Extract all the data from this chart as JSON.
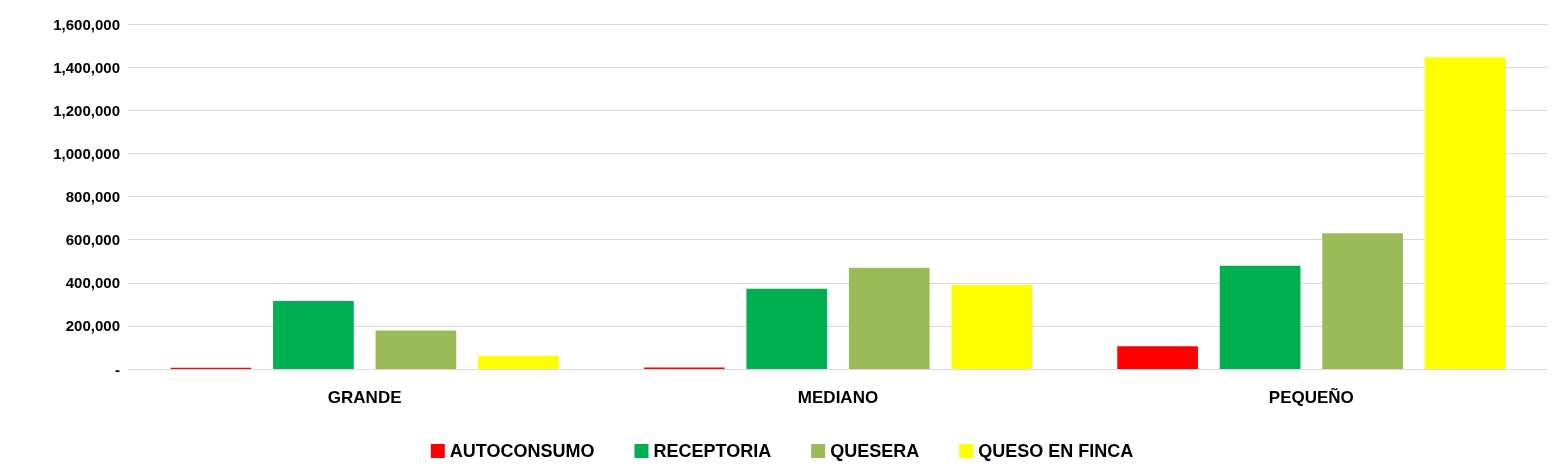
{
  "chart_data": {
    "type": "bar",
    "categories": [
      "GRANDE",
      "MEDIANO",
      "PEQUEÑO"
    ],
    "series": [
      {
        "name": "AUTOCONSUMO",
        "color": "#ff0000",
        "values": [
          6000,
          7000,
          106000
        ]
      },
      {
        "name": "RECEPTORIA",
        "color": "#00b050",
        "values": [
          315000,
          372000,
          479000
        ]
      },
      {
        "name": "QUESERA",
        "color": "#9bbb59",
        "values": [
          178000,
          470000,
          630000
        ]
      },
      {
        "name": "QUESO EN FINCA",
        "color": "#ffff00",
        "values": [
          62000,
          390000,
          1446000
        ]
      }
    ],
    "ylim": [
      0,
      1600000
    ],
    "yticks": [
      {
        "value": 0,
        "label": "-"
      },
      {
        "value": 200000,
        "label": "200,000"
      },
      {
        "value": 400000,
        "label": "400,000"
      },
      {
        "value": 600000,
        "label": "600,000"
      },
      {
        "value": 800000,
        "label": "800,000"
      },
      {
        "value": 1000000,
        "label": "1,000,000"
      },
      {
        "value": 1200000,
        "label": "1,200,000"
      },
      {
        "value": 1400000,
        "label": "1,400,000"
      },
      {
        "value": 1600000,
        "label": "1,600,000"
      }
    ],
    "grid": "y",
    "legend": "bottom"
  }
}
